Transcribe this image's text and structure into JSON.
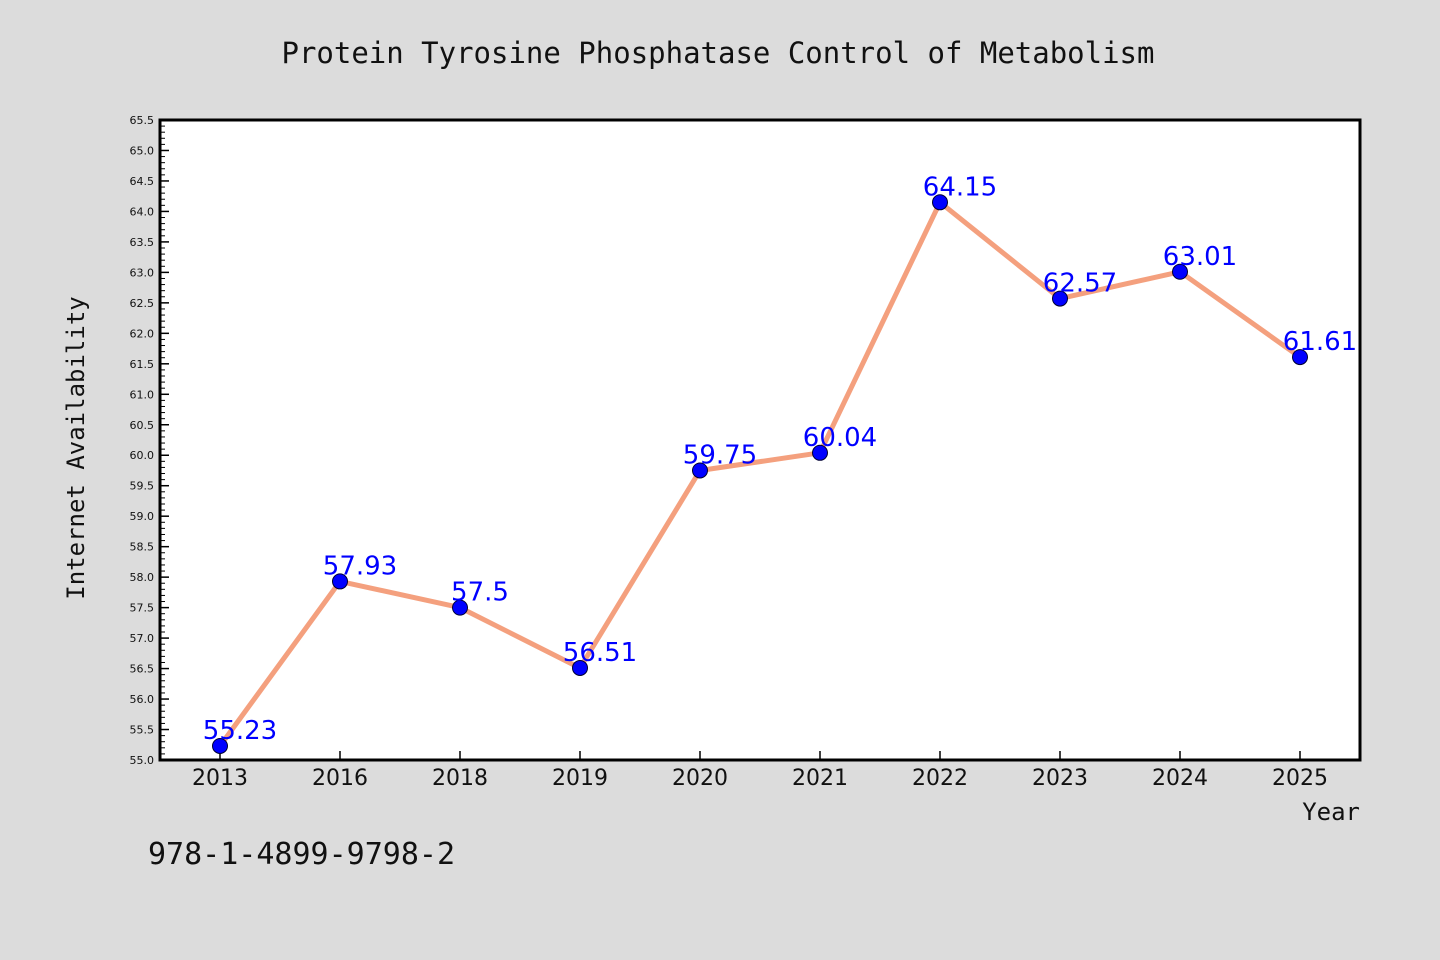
{
  "chart_data": {
    "type": "line",
    "title": "Protein Tyrosine Phosphatase Control of Metabolism",
    "xlabel": "Year",
    "ylabel": "Internet Availability",
    "categories": [
      "2013",
      "2016",
      "2018",
      "2019",
      "2020",
      "2021",
      "2022",
      "2023",
      "2024",
      "2025"
    ],
    "values": [
      55.23,
      57.93,
      57.5,
      56.51,
      59.75,
      60.04,
      64.15,
      62.57,
      63.01,
      61.61
    ],
    "data_labels": [
      "55.23",
      "57.93",
      "57.5",
      "56.51",
      "59.75",
      "60.04",
      "64.15",
      "62.57",
      "63.01",
      "61.61"
    ],
    "ylim": [
      55.0,
      65.5
    ],
    "yticks": [
      "55.0",
      "55.5",
      "56.0",
      "56.5",
      "57.0",
      "57.5",
      "58.0",
      "58.5",
      "59.0",
      "59.5",
      "60.0",
      "60.5",
      "61.0",
      "61.5",
      "62.0",
      "62.5",
      "63.0",
      "63.5",
      "64.0",
      "64.5",
      "65.0",
      "65.5"
    ],
    "grid": false,
    "line_color": "#f4a07e",
    "marker_color": "#0000ff",
    "label_color": "#0000ff"
  },
  "footer": {
    "isbn": "978-1-4899-9798-2"
  }
}
